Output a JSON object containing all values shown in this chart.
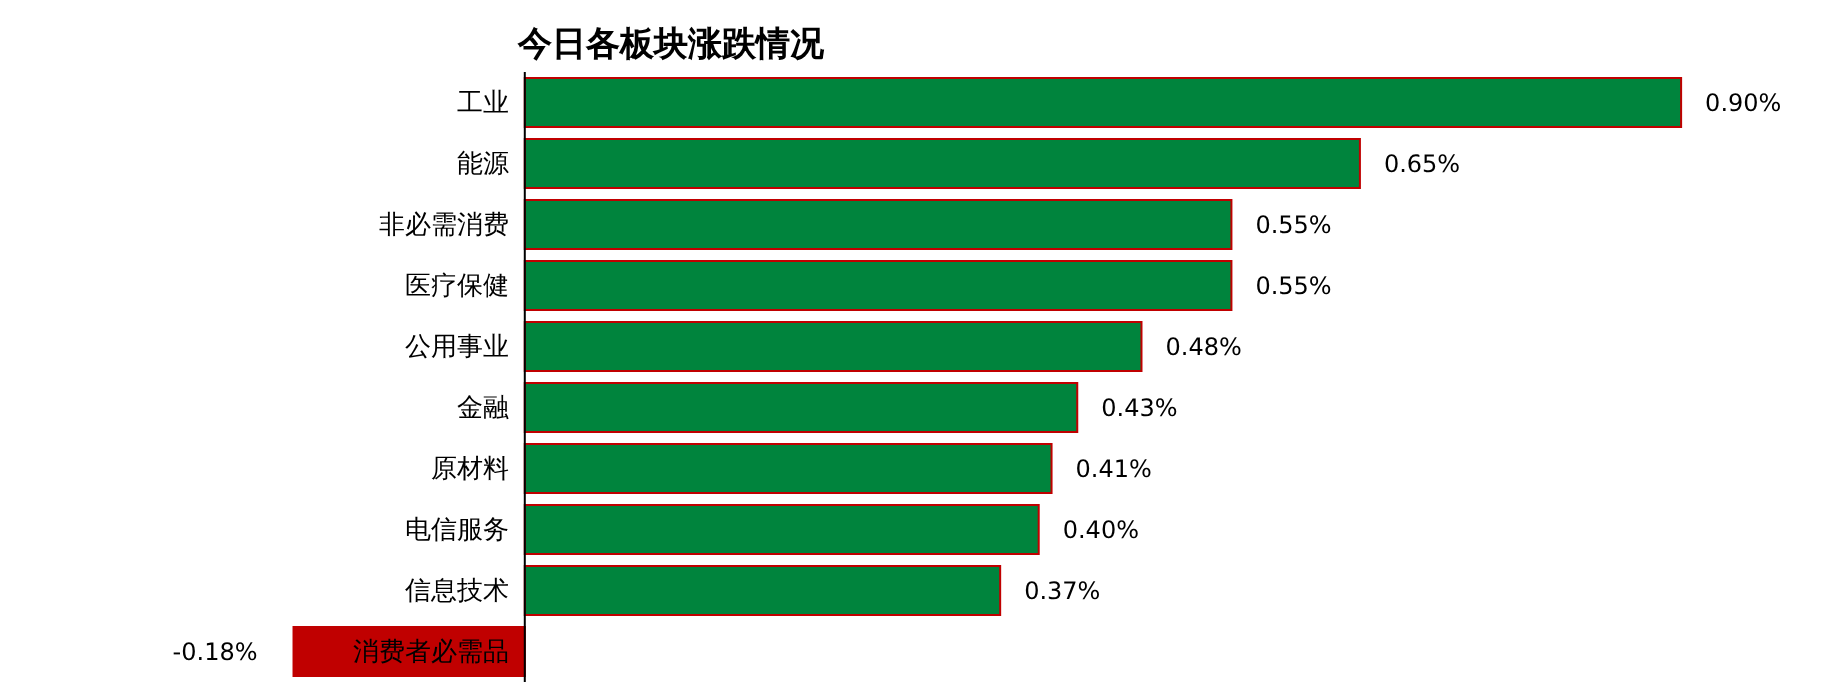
{
  "chart_data": {
    "type": "bar",
    "orientation": "horizontal",
    "title": "今日各板块涨跌情况",
    "categories": [
      "工业",
      "能源",
      "非必需消费",
      "医疗保健",
      "公用事业",
      "金融",
      "原材料",
      "电信服务",
      "信息技术",
      "消费者必需品"
    ],
    "values": [
      0.9,
      0.65,
      0.55,
      0.55,
      0.48,
      0.43,
      0.41,
      0.4,
      0.37,
      -0.18
    ],
    "value_labels": [
      "0.90%",
      "0.65%",
      "0.55%",
      "0.55%",
      "0.48%",
      "0.43%",
      "0.41%",
      "0.40%",
      "0.37%",
      "-0.18%"
    ],
    "colors": [
      "#00843d",
      "#00843d",
      "#00843d",
      "#00843d",
      "#00843d",
      "#00843d",
      "#00843d",
      "#00843d",
      "#00843d",
      "#c00000"
    ]
  }
}
